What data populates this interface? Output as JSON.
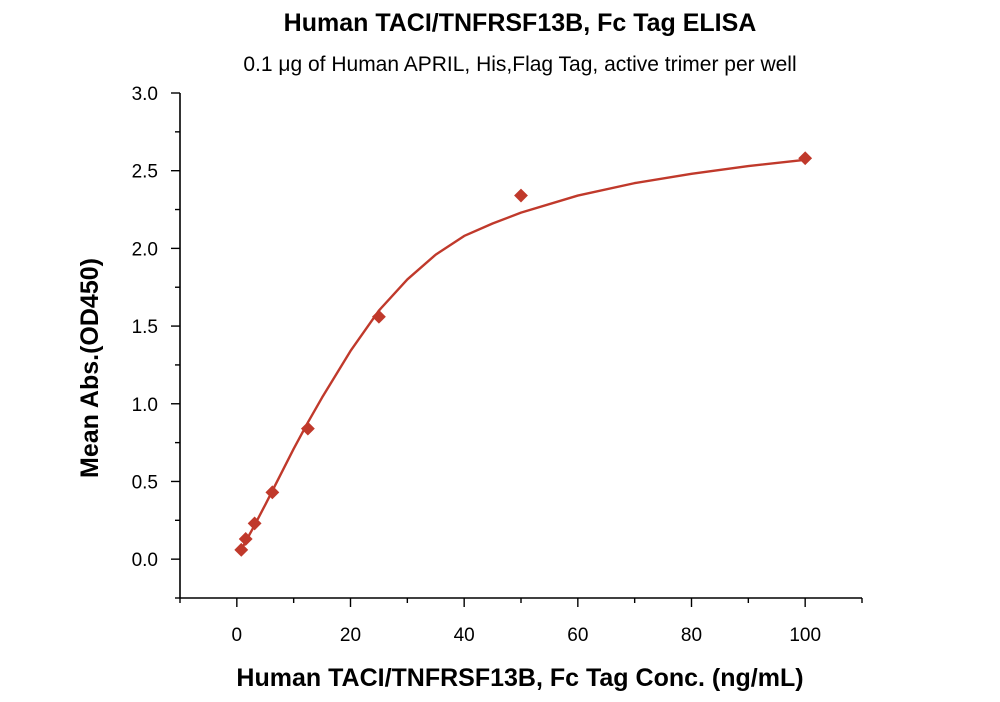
{
  "chart_data": {
    "type": "scatter",
    "title": "Human TACI/TNFRSF13B, Fc Tag ELISA",
    "subtitle": "0.1 μg of Human APRIL, His,Flag Tag, active trimer per well",
    "xlabel": "Human TACI/TNFRSF13B, Fc Tag Conc. (ng/mL)",
    "ylabel": "Mean Abs.(OD450)",
    "xlim": [
      -10,
      110
    ],
    "ylim": [
      -0.25,
      3.0
    ],
    "x_ticks": [
      0,
      20,
      40,
      60,
      80,
      100
    ],
    "y_ticks": [
      0.0,
      0.5,
      1.0,
      1.5,
      2.0,
      2.5,
      3.0
    ],
    "x_tick_labels": [
      "0",
      "20",
      "40",
      "60",
      "80",
      "100"
    ],
    "y_tick_labels": [
      "0.0",
      "0.5",
      "1.0",
      "1.5",
      "2.0",
      "2.5",
      "3.0"
    ],
    "grid": false,
    "series": [
      {
        "marker": "diamond",
        "color": "#c0392b",
        "x": [
          0.78,
          1.56,
          3.13,
          6.25,
          12.5,
          25,
          50,
          100
        ],
        "y": [
          0.06,
          0.13,
          0.23,
          0.43,
          0.84,
          1.56,
          2.34,
          2.58
        ]
      }
    ],
    "fit_curve": {
      "color": "#c0392b",
      "x": [
        0.78,
        1.5,
        3,
        5,
        7.5,
        10,
        12.5,
        15,
        20,
        25,
        30,
        35,
        40,
        45,
        50,
        60,
        70,
        80,
        90,
        100
      ],
      "y": [
        0.06,
        0.11,
        0.21,
        0.35,
        0.53,
        0.71,
        0.88,
        1.04,
        1.34,
        1.6,
        1.8,
        1.96,
        2.08,
        2.16,
        2.23,
        2.34,
        2.42,
        2.48,
        2.53,
        2.57
      ]
    }
  }
}
